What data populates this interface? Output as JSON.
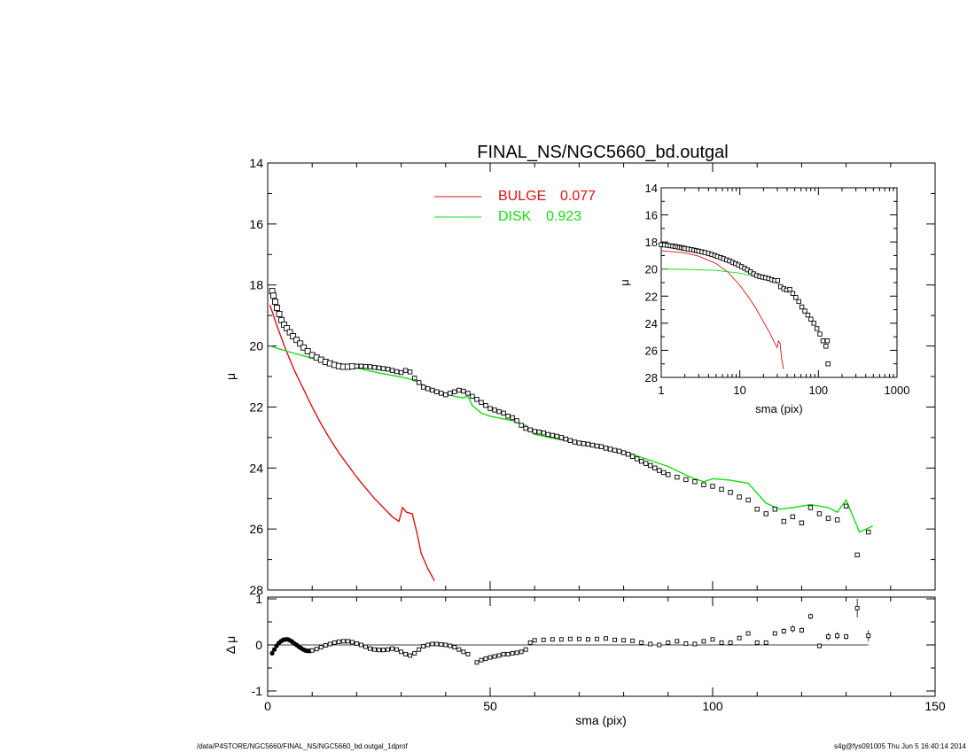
{
  "footer": {
    "left": "/data/P4STORE/NGC5660/FINAL_NS/NGC5660_bd.outgal_1dprof",
    "right": "s4g@fys091005  Thu Jun  5 16:40:14 2014"
  },
  "colors": {
    "bulge": "#dd1111",
    "disk": "#11dd11",
    "data": "#000000",
    "ink": "#000000"
  },
  "chart_data": [
    {
      "id": "main",
      "type": "scatter",
      "title": "FINAL_NS/NGC5660_bd.outgal",
      "xlabel": "",
      "ylabel": "μ",
      "xlim": [
        0,
        150
      ],
      "ylim": [
        28,
        14
      ],
      "yticks": [
        "14",
        "16",
        "18",
        "20",
        "22",
        "24",
        "26",
        "28"
      ],
      "xticks": [],
      "legend": {
        "position": "top-center",
        "entries": [
          {
            "label": "BULGE",
            "value": "0.077",
            "color": "#dd1111"
          },
          {
            "label": "DISK",
            "value": "0.923",
            "color": "#11dd11"
          }
        ]
      },
      "data_points": {
        "x": [
          1.0,
          1.3,
          1.7,
          2.1,
          2.6,
          3.1,
          3.7,
          4.3,
          5.0,
          5.7,
          6.5,
          7.3,
          8.1,
          9.0,
          10.0,
          11.0,
          12.0,
          13.0,
          14.0,
          15.0,
          16.0,
          17.0,
          18.0,
          19.0,
          20.0,
          21.0,
          22.0,
          23.0,
          24.0,
          25.0,
          26.0,
          27.0,
          28.0,
          29.0,
          30.0,
          31.0,
          32.0,
          33.0,
          34.0,
          35.0,
          36.0,
          37.0,
          38.0,
          39.0,
          40.0,
          41.0,
          42.0,
          43.0,
          44.0,
          45.0,
          46.0,
          47.0,
          48.0,
          49.0,
          50.0,
          51.0,
          52.0,
          53.0,
          54.0,
          55.0,
          56.0,
          57.0,
          58.0,
          59.0,
          60.0,
          61.0,
          62.0,
          63.0,
          64.0,
          65.0,
          66.0,
          67.0,
          68.0,
          69.0,
          70.0,
          71.0,
          72.0,
          73.0,
          74.0,
          75.0,
          76.0,
          77.0,
          78.0,
          79.0,
          80.0,
          81.0,
          82.0,
          83.0,
          84.0,
          85.0,
          86.0,
          87.0,
          88.0,
          89.0,
          90.0,
          92.0,
          94.0,
          96.0,
          98.0,
          100.0,
          102.0,
          104.0,
          106.0,
          108.0,
          110.0,
          112.0,
          114.0,
          116.0,
          118.0,
          120.0,
          122.0,
          124.0,
          126.0,
          128.0,
          130.0,
          132.5,
          135.0
        ],
        "y": [
          18.2,
          18.35,
          18.55,
          18.75,
          18.95,
          19.15,
          19.3,
          19.42,
          19.55,
          19.68,
          19.8,
          19.92,
          20.05,
          20.17,
          20.3,
          20.38,
          20.45,
          20.52,
          20.57,
          20.62,
          20.66,
          20.68,
          20.68,
          20.67,
          20.66,
          20.66,
          20.67,
          20.68,
          20.7,
          20.72,
          20.74,
          20.76,
          20.8,
          20.84,
          20.87,
          20.8,
          20.85,
          21.05,
          21.2,
          21.35,
          21.4,
          21.45,
          21.5,
          21.55,
          21.6,
          21.55,
          21.5,
          21.45,
          21.48,
          21.55,
          21.65,
          21.75,
          21.85,
          21.95,
          22.05,
          22.1,
          22.15,
          22.2,
          22.3,
          22.35,
          22.45,
          22.6,
          22.7,
          22.75,
          22.8,
          22.82,
          22.85,
          22.9,
          22.93,
          22.96,
          23.0,
          23.05,
          23.1,
          23.15,
          23.18,
          23.2,
          23.22,
          23.25,
          23.28,
          23.3,
          23.35,
          23.38,
          23.42,
          23.45,
          23.5,
          23.55,
          23.62,
          23.7,
          23.78,
          23.85,
          23.92,
          24.0,
          24.08,
          24.15,
          24.22,
          24.3,
          24.38,
          24.45,
          24.55,
          24.6,
          24.7,
          24.8,
          24.95,
          25.05,
          25.35,
          25.5,
          25.35,
          25.75,
          25.6,
          25.8,
          25.3,
          25.5,
          25.65,
          25.7,
          25.25,
          26.85,
          26.1
        ]
      },
      "bulge_line": {
        "x": [
          0.5,
          2,
          4,
          6,
          8,
          10,
          12,
          14,
          16,
          18,
          20,
          22,
          24,
          26,
          28,
          29.5,
          30.3,
          31.2,
          32.5,
          33.5,
          34.5,
          36,
          37.5,
          38.5
        ],
        "y": [
          18.65,
          19.3,
          20.1,
          20.8,
          21.4,
          22.0,
          22.55,
          23.05,
          23.5,
          23.9,
          24.3,
          24.65,
          25.0,
          25.3,
          25.6,
          25.75,
          25.3,
          25.45,
          25.5,
          26.1,
          26.8,
          27.3,
          27.7,
          28.1
        ]
      },
      "disk_line": {
        "x": [
          0.5,
          5,
          10,
          15,
          20,
          25,
          30,
          32,
          34,
          36,
          38,
          40,
          42,
          44,
          45,
          46,
          48,
          50,
          55,
          58,
          60,
          65,
          70,
          75,
          80,
          85,
          90,
          95,
          98,
          100,
          104,
          108,
          112,
          115,
          118,
          122,
          126,
          128,
          130,
          133,
          136
        ],
        "y": [
          20.0,
          20.2,
          20.4,
          20.58,
          20.72,
          20.88,
          21.02,
          21.08,
          21.2,
          21.35,
          21.45,
          21.55,
          21.65,
          21.7,
          21.65,
          21.95,
          22.2,
          22.3,
          22.45,
          22.6,
          22.9,
          23.05,
          23.2,
          23.3,
          23.45,
          23.7,
          23.95,
          24.3,
          24.45,
          24.35,
          24.4,
          24.5,
          25.15,
          25.35,
          25.3,
          25.2,
          25.3,
          25.45,
          25.05,
          26.1,
          25.9
        ]
      }
    },
    {
      "id": "residual",
      "type": "scatter",
      "title": "",
      "xlabel": "sma (pix)",
      "ylabel": "Δ μ",
      "xlim": [
        0,
        150
      ],
      "ylim": [
        -1,
        1
      ],
      "yticks": [
        "1",
        "0",
        "-1"
      ],
      "xticks": [
        "0",
        "50",
        "100",
        "150"
      ],
      "x": [
        1.0,
        1.5,
        2.0,
        2.5,
        3.0,
        3.5,
        4.0,
        4.5,
        5.0,
        5.5,
        6.0,
        6.5,
        7.0,
        7.5,
        8.0,
        8.5,
        9.0,
        9.5,
        10.0,
        11.0,
        12.0,
        13.0,
        14.0,
        15.0,
        16.0,
        17.0,
        18.0,
        19.0,
        20.0,
        21.0,
        22.0,
        23.0,
        24.0,
        25.0,
        26.0,
        27.0,
        28.0,
        29.0,
        30.0,
        31.0,
        32.0,
        33.0,
        34.0,
        35.0,
        36.0,
        37.0,
        38.0,
        39.0,
        40.0,
        41.0,
        42.0,
        43.0,
        44.0,
        45.0,
        47.0,
        48.0,
        49.0,
        50.0,
        51.0,
        52.0,
        53.0,
        54.0,
        55.0,
        56.0,
        57.0,
        58.0,
        59.0,
        60.0,
        62.0,
        64.0,
        66.0,
        68.0,
        70.0,
        72.0,
        74.0,
        76.0,
        78.0,
        80.0,
        82.0,
        84.0,
        86.0,
        88.0,
        90.0,
        92.0,
        94.0,
        96.0,
        98.0,
        100.0,
        102.0,
        104.0,
        106.0,
        108.0,
        110.0,
        112.0,
        114.0,
        116.0,
        118.0,
        120.0,
        122.0,
        124.0,
        126.0,
        128.0,
        130.0,
        132.5,
        135.0
      ],
      "y": [
        -0.18,
        -0.1,
        -0.02,
        0.04,
        0.08,
        0.11,
        0.12,
        0.12,
        0.1,
        0.07,
        0.03,
        0.0,
        -0.04,
        -0.07,
        -0.1,
        -0.12,
        -0.13,
        -0.13,
        -0.12,
        -0.09,
        -0.05,
        -0.01,
        0.02,
        0.05,
        0.07,
        0.08,
        0.08,
        0.06,
        0.03,
        0.0,
        -0.04,
        -0.08,
        -0.1,
        -0.11,
        -0.11,
        -0.1,
        -0.08,
        -0.1,
        -0.15,
        -0.2,
        -0.23,
        -0.18,
        -0.1,
        -0.03,
        0.0,
        0.02,
        0.02,
        0.01,
        0.0,
        -0.02,
        -0.05,
        -0.1,
        -0.15,
        -0.2,
        -0.38,
        -0.33,
        -0.3,
        -0.27,
        -0.25,
        -0.23,
        -0.2,
        -0.2,
        -0.18,
        -0.17,
        -0.15,
        -0.1,
        0.05,
        0.1,
        0.11,
        0.12,
        0.12,
        0.13,
        0.13,
        0.12,
        0.13,
        0.14,
        0.11,
        0.1,
        0.09,
        0.05,
        0.02,
        0.0,
        0.05,
        0.08,
        0.03,
        0.02,
        0.08,
        0.12,
        0.05,
        0.05,
        0.15,
        0.25,
        0.05,
        0.05,
        0.25,
        0.3,
        0.35,
        0.32,
        0.62,
        -0.02,
        0.18,
        0.2,
        0.18,
        0.8,
        0.2
      ],
      "errors": [
        0.0,
        0.0,
        0.0,
        0.0,
        0.0,
        0.0,
        0.0,
        0.0,
        0.0,
        0.0,
        0.0,
        0.0,
        0.0,
        0.0,
        0.0,
        0.0,
        0.0,
        0.0,
        0.0,
        0.0,
        0.0,
        0.0,
        0.0,
        0.0,
        0.0,
        0.0,
        0.0,
        0.0,
        0.0,
        0.0,
        0.0,
        0.0,
        0.0,
        0.0,
        0.0,
        0.0,
        0.0,
        0.0,
        0.0,
        0.0,
        0.0,
        0.0,
        0.0,
        0.0,
        0.0,
        0.0,
        0.0,
        0.0,
        0.0,
        0.0,
        0.0,
        0.0,
        0.0,
        0.0,
        0.0,
        0.0,
        0.0,
        0.0,
        0.0,
        0.0,
        0.0,
        0.0,
        0.0,
        0.0,
        0.0,
        0.0,
        0.0,
        0.0,
        0.0,
        0.0,
        0.0,
        0.0,
        0.0,
        0.0,
        0.0,
        0.0,
        0.0,
        0.0,
        0.0,
        0.0,
        0.0,
        0.0,
        0.0,
        0.0,
        0.0,
        0.0,
        0.0,
        0.0,
        0.03,
        0.03,
        0.03,
        0.03,
        0.03,
        0.04,
        0.04,
        0.06,
        0.08,
        0.06,
        0.06,
        0.05,
        0.08,
        0.08,
        0.06,
        0.2,
        0.12
      ],
      "zero_line": {
        "x": [
          0,
          135
        ],
        "y": 0
      }
    },
    {
      "id": "inset",
      "type": "scatter",
      "title": "",
      "xlabel": "sma (pix)",
      "ylabel": "μ",
      "xscale": "log",
      "xlim": [
        1,
        1000
      ],
      "ylim": [
        28,
        14
      ],
      "yticks": [
        "14",
        "16",
        "18",
        "20",
        "22",
        "24",
        "26",
        "28"
      ],
      "xticks": [
        "1",
        "10",
        "100",
        "1000"
      ],
      "data_points": {
        "x": [
          1.0,
          1.1,
          1.2,
          1.3,
          1.4,
          1.5,
          1.6,
          1.7,
          1.8,
          1.9,
          2.0,
          2.2,
          2.4,
          2.6,
          2.8,
          3.0,
          3.3,
          3.6,
          4.0,
          4.4,
          4.8,
          5.2,
          5.7,
          6.2,
          6.8,
          7.4,
          8.1,
          8.8,
          9.6,
          10.5,
          11.5,
          12.5,
          13.7,
          15.0,
          16.4,
          17.9,
          19.5,
          21.3,
          23.3,
          25.4,
          27.8,
          30.3,
          33.1,
          36.2,
          39.5,
          43.2,
          47.2,
          51.5,
          56.3,
          61.5,
          67.2,
          73.4,
          80.2,
          87.6,
          95.7,
          104.5,
          114.2,
          124.7,
          130.0,
          132.5
        ],
        "y": [
          18.2,
          18.22,
          18.25,
          18.28,
          18.3,
          18.33,
          18.36,
          18.39,
          18.42,
          18.45,
          18.48,
          18.52,
          18.56,
          18.6,
          18.64,
          18.68,
          18.73,
          18.78,
          18.85,
          18.92,
          19.0,
          19.07,
          19.15,
          19.23,
          19.32,
          19.4,
          19.5,
          19.6,
          19.7,
          19.82,
          19.94,
          20.06,
          20.2,
          20.35,
          20.48,
          20.55,
          20.6,
          20.65,
          20.7,
          20.78,
          20.85,
          20.85,
          21.3,
          21.45,
          21.55,
          21.5,
          21.8,
          22.1,
          22.4,
          22.8,
          23.1,
          23.4,
          23.7,
          24.0,
          24.4,
          24.8,
          25.3,
          25.7,
          25.3,
          27.0
        ]
      },
      "bulge_line": {
        "x": [
          1.0,
          2.0,
          3.0,
          5.0,
          7.0,
          10.0,
          13.0,
          16.0,
          20.0,
          24.0,
          28.0,
          30.0,
          31.0,
          32.5,
          34.0,
          36.0,
          38.0
        ],
        "y": [
          18.65,
          18.8,
          19.05,
          19.6,
          20.2,
          21.2,
          22.1,
          22.9,
          23.9,
          24.7,
          25.5,
          25.8,
          25.3,
          25.5,
          26.6,
          27.4,
          28.1
        ]
      },
      "disk_line": {
        "x": [
          1.0,
          2.0,
          5.0,
          10.0,
          20.0,
          30.0,
          40.0
        ],
        "y": [
          20.0,
          20.02,
          20.1,
          20.3,
          20.7,
          21.05,
          21.5
        ]
      }
    }
  ]
}
